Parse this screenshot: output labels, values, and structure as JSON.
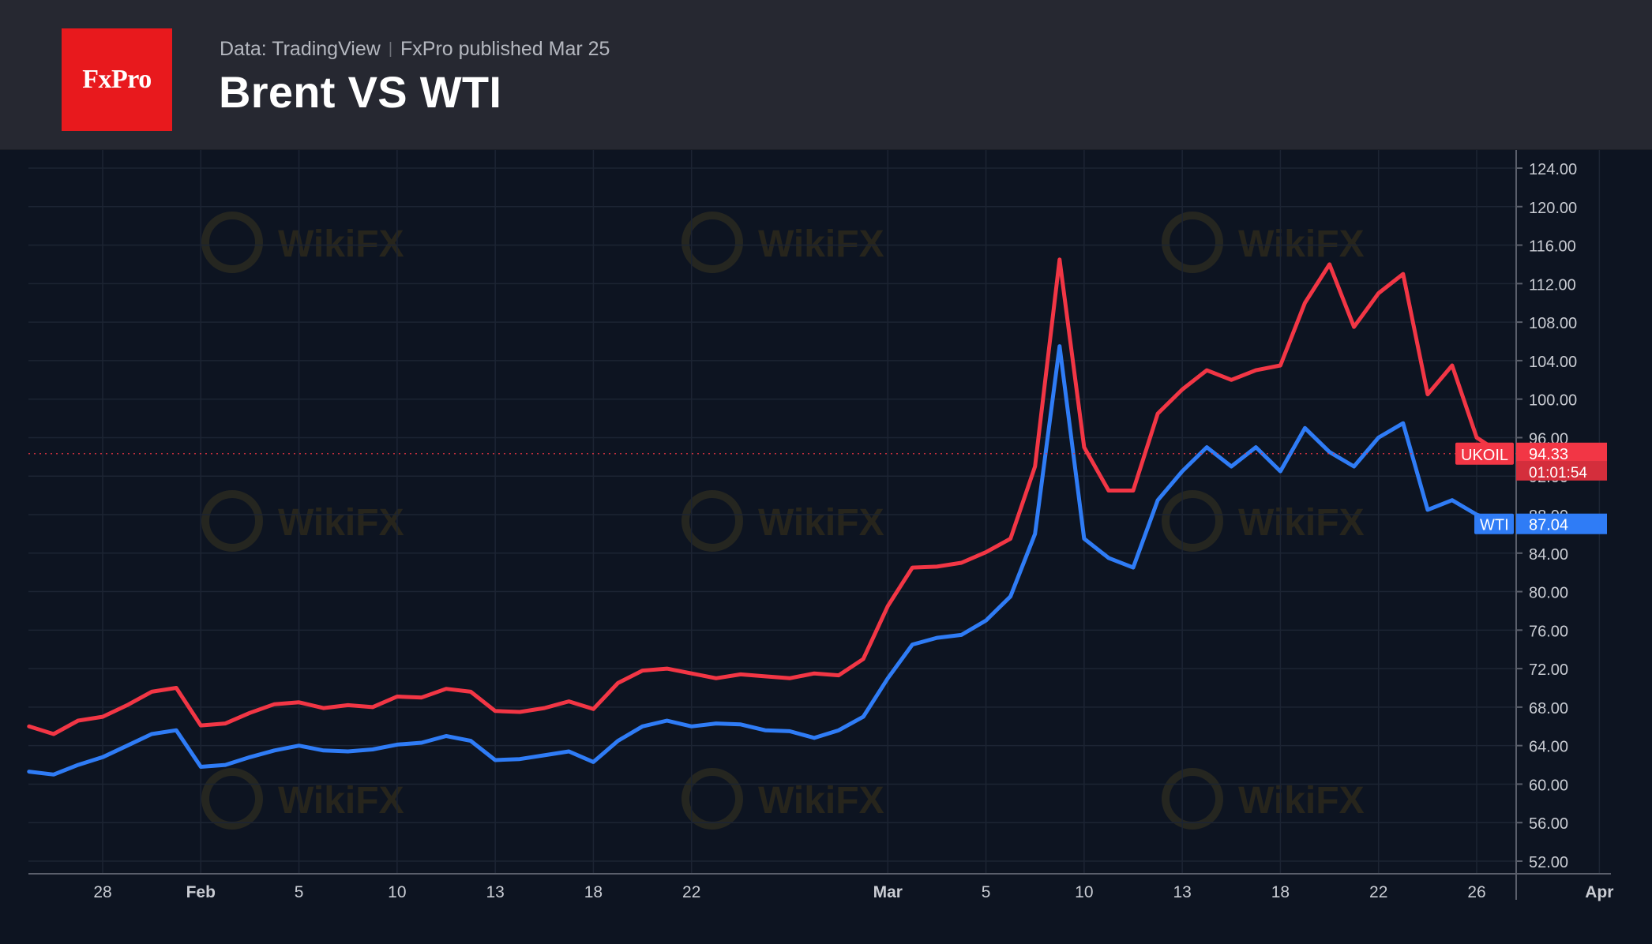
{
  "header": {
    "logo_text": "FxPro",
    "source": "Data: TradingView",
    "published": "FxPro published Mar 25",
    "title": "Brent VS WTI"
  },
  "watermark": "WikiFX",
  "colors": {
    "background": "#0d1421",
    "header_background": "#262831",
    "brent": "#f23645",
    "wti": "#2f7cf6",
    "grid": "#1c2433",
    "axis_text": "#c9ccd3"
  },
  "chart_data": {
    "type": "line",
    "title": "Brent VS WTI",
    "xlabel": "",
    "ylabel": "",
    "ylim": [
      50,
      126
    ],
    "y_ticks": [
      "124.00",
      "120.00",
      "116.00",
      "112.00",
      "108.00",
      "104.00",
      "100.00",
      "96.00",
      "92.00",
      "88.00",
      "84.00",
      "80.00",
      "76.00",
      "72.00",
      "68.00",
      "64.00",
      "60.00",
      "56.00",
      "52.00"
    ],
    "x_range": [
      "2022-01-25",
      "2022-04-02"
    ],
    "x_ticks": [
      {
        "date": "2022-01-28",
        "label": "28",
        "bold": false
      },
      {
        "date": "2022-02-01",
        "label": "Feb",
        "bold": true
      },
      {
        "date": "2022-02-05",
        "label": "5",
        "bold": false
      },
      {
        "date": "2022-02-09",
        "label": "10",
        "bold": false
      },
      {
        "date": "2022-02-13",
        "label": "13",
        "bold": false
      },
      {
        "date": "2022-02-17",
        "label": "18",
        "bold": false
      },
      {
        "date": "2022-02-21",
        "label": "22",
        "bold": false
      },
      {
        "date": "2022-03-01",
        "label": "Mar",
        "bold": true
      },
      {
        "date": "2022-03-05",
        "label": "5",
        "bold": false
      },
      {
        "date": "2022-03-09",
        "label": "10",
        "bold": false
      },
      {
        "date": "2022-03-13",
        "label": "13",
        "bold": false
      },
      {
        "date": "2022-03-17",
        "label": "18",
        "bold": false
      },
      {
        "date": "2022-03-21",
        "label": "22",
        "bold": false
      },
      {
        "date": "2022-03-25",
        "label": "26",
        "bold": false
      },
      {
        "date": "2022-03-30",
        "label": "Apr",
        "bold": true
      }
    ],
    "grid": true,
    "series": [
      {
        "name": "UKOIL",
        "color": "#f23645",
        "last_value": "94.33",
        "countdown": "01:01:54",
        "points": [
          [
            "2022-01-25",
            66.0
          ],
          [
            "2022-01-26",
            65.2
          ],
          [
            "2022-01-27",
            66.6
          ],
          [
            "2022-01-28",
            67.0
          ],
          [
            "2022-01-29",
            68.2
          ],
          [
            "2022-01-30",
            69.6
          ],
          [
            "2022-01-31",
            70.0
          ],
          [
            "2022-02-01",
            66.1
          ],
          [
            "2022-02-02",
            66.3
          ],
          [
            "2022-02-03",
            67.4
          ],
          [
            "2022-02-04",
            68.3
          ],
          [
            "2022-02-05",
            68.5
          ],
          [
            "2022-02-06",
            67.9
          ],
          [
            "2022-02-07",
            68.2
          ],
          [
            "2022-02-08",
            68.0
          ],
          [
            "2022-02-09",
            69.1
          ],
          [
            "2022-02-10",
            69.0
          ],
          [
            "2022-02-11",
            69.9
          ],
          [
            "2022-02-12",
            69.6
          ],
          [
            "2022-02-13",
            67.6
          ],
          [
            "2022-02-14",
            67.5
          ],
          [
            "2022-02-15",
            67.9
          ],
          [
            "2022-02-16",
            68.6
          ],
          [
            "2022-02-17",
            67.8
          ],
          [
            "2022-02-18",
            70.5
          ],
          [
            "2022-02-19",
            71.8
          ],
          [
            "2022-02-20",
            72.0
          ],
          [
            "2022-02-21",
            71.5
          ],
          [
            "2022-02-22",
            71.0
          ],
          [
            "2022-02-23",
            71.4
          ],
          [
            "2022-02-24",
            71.2
          ],
          [
            "2022-02-25",
            71.0
          ],
          [
            "2022-02-26",
            71.5
          ],
          [
            "2022-02-27",
            71.3
          ],
          [
            "2022-02-28",
            73.0
          ],
          [
            "2022-03-01",
            78.5
          ],
          [
            "2022-03-02",
            82.5
          ],
          [
            "2022-03-03",
            82.6
          ],
          [
            "2022-03-04",
            83.0
          ],
          [
            "2022-03-05",
            84.1
          ],
          [
            "2022-03-06",
            85.5
          ],
          [
            "2022-03-07",
            93.0
          ],
          [
            "2022-03-08",
            114.5
          ],
          [
            "2022-03-09",
            95.0
          ],
          [
            "2022-03-10",
            90.5
          ],
          [
            "2022-03-11",
            90.5
          ],
          [
            "2022-03-12",
            98.5
          ],
          [
            "2022-03-13",
            101.0
          ],
          [
            "2022-03-14",
            103.0
          ],
          [
            "2022-03-15",
            102.0
          ],
          [
            "2022-03-16",
            103.0
          ],
          [
            "2022-03-17",
            103.5
          ],
          [
            "2022-03-18",
            110.0
          ],
          [
            "2022-03-19",
            114.0
          ],
          [
            "2022-03-20",
            107.5
          ],
          [
            "2022-03-21",
            111.0
          ],
          [
            "2022-03-22",
            113.0
          ],
          [
            "2022-03-23",
            100.5
          ],
          [
            "2022-03-24",
            103.5
          ],
          [
            "2022-03-25",
            96.0
          ],
          [
            "2022-03-26",
            94.33
          ]
        ]
      },
      {
        "name": "WTI",
        "color": "#2f7cf6",
        "last_value": "87.04",
        "points": [
          [
            "2022-01-25",
            61.3
          ],
          [
            "2022-01-26",
            61.0
          ],
          [
            "2022-01-27",
            62.0
          ],
          [
            "2022-01-28",
            62.8
          ],
          [
            "2022-01-29",
            64.0
          ],
          [
            "2022-01-30",
            65.2
          ],
          [
            "2022-01-31",
            65.6
          ],
          [
            "2022-02-01",
            61.8
          ],
          [
            "2022-02-02",
            62.0
          ],
          [
            "2022-02-03",
            62.8
          ],
          [
            "2022-02-04",
            63.5
          ],
          [
            "2022-02-05",
            64.0
          ],
          [
            "2022-02-06",
            63.5
          ],
          [
            "2022-02-07",
            63.4
          ],
          [
            "2022-02-08",
            63.6
          ],
          [
            "2022-02-09",
            64.1
          ],
          [
            "2022-02-10",
            64.3
          ],
          [
            "2022-02-11",
            65.0
          ],
          [
            "2022-02-12",
            64.5
          ],
          [
            "2022-02-13",
            62.5
          ],
          [
            "2022-02-14",
            62.6
          ],
          [
            "2022-02-15",
            63.0
          ],
          [
            "2022-02-16",
            63.4
          ],
          [
            "2022-02-17",
            62.3
          ],
          [
            "2022-02-18",
            64.5
          ],
          [
            "2022-02-19",
            66.0
          ],
          [
            "2022-02-20",
            66.6
          ],
          [
            "2022-02-21",
            66.0
          ],
          [
            "2022-02-22",
            66.3
          ],
          [
            "2022-02-23",
            66.2
          ],
          [
            "2022-02-24",
            65.6
          ],
          [
            "2022-02-25",
            65.5
          ],
          [
            "2022-02-26",
            64.8
          ],
          [
            "2022-02-27",
            65.6
          ],
          [
            "2022-02-28",
            67.0
          ],
          [
            "2022-03-01",
            71.0
          ],
          [
            "2022-03-02",
            74.5
          ],
          [
            "2022-03-03",
            75.2
          ],
          [
            "2022-03-04",
            75.5
          ],
          [
            "2022-03-05",
            77.0
          ],
          [
            "2022-03-06",
            79.5
          ],
          [
            "2022-03-07",
            86.0
          ],
          [
            "2022-03-08",
            105.5
          ],
          [
            "2022-03-09",
            85.5
          ],
          [
            "2022-03-10",
            83.5
          ],
          [
            "2022-03-11",
            82.5
          ],
          [
            "2022-03-12",
            89.5
          ],
          [
            "2022-03-13",
            92.5
          ],
          [
            "2022-03-14",
            95.0
          ],
          [
            "2022-03-15",
            93.0
          ],
          [
            "2022-03-16",
            95.0
          ],
          [
            "2022-03-17",
            92.5
          ],
          [
            "2022-03-18",
            97.0
          ],
          [
            "2022-03-19",
            94.5
          ],
          [
            "2022-03-20",
            93.0
          ],
          [
            "2022-03-21",
            96.0
          ],
          [
            "2022-03-22",
            97.5
          ],
          [
            "2022-03-23",
            88.5
          ],
          [
            "2022-03-24",
            89.5
          ],
          [
            "2022-03-25",
            88.0
          ],
          [
            "2022-03-26",
            87.04
          ]
        ]
      }
    ]
  }
}
